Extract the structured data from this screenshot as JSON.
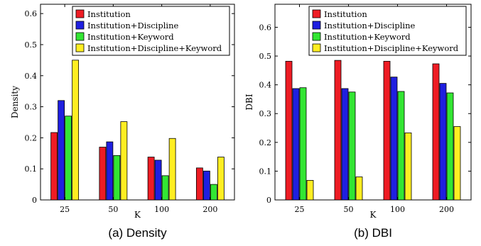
{
  "chart_data": [
    {
      "type": "bar",
      "categories": [
        "25",
        "50",
        "100",
        "200"
      ],
      "series": [
        {
          "name": "Institution",
          "color": "#ee1c24",
          "values": [
            0.217,
            0.17,
            0.138,
            0.103
          ]
        },
        {
          "name": "Institution+Discipline",
          "color": "#1f1fe0",
          "values": [
            0.32,
            0.187,
            0.128,
            0.093
          ]
        },
        {
          "name": "Institution+Keyword",
          "color": "#33e633",
          "values": [
            0.27,
            0.143,
            0.078,
            0.05
          ]
        },
        {
          "name": "Institution+Discipline+Keyword",
          "color": "#ffee22",
          "values": [
            0.45,
            0.252,
            0.198,
            0.138
          ]
        }
      ],
      "xlabel": "K",
      "ylabel": "Density",
      "ylim": [
        0,
        0.63
      ],
      "yticks": [
        "0",
        "0.1",
        "0.2",
        "0.3",
        "0.4",
        "0.5",
        "0.6"
      ],
      "legend": "top-right",
      "grid": false,
      "caption": "(a) Density"
    },
    {
      "type": "bar",
      "categories": [
        "25",
        "50",
        "100",
        "200"
      ],
      "series": [
        {
          "name": "Institution",
          "color": "#ee1c24",
          "values": [
            0.482,
            0.485,
            0.482,
            0.473
          ]
        },
        {
          "name": "Institution+Discipline",
          "color": "#1f1fe0",
          "values": [
            0.387,
            0.387,
            0.427,
            0.405
          ]
        },
        {
          "name": "Institution+Keyword",
          "color": "#33e633",
          "values": [
            0.39,
            0.375,
            0.377,
            0.372
          ]
        },
        {
          "name": "Institution+Discipline+Keyword",
          "color": "#ffee22",
          "values": [
            0.068,
            0.08,
            0.233,
            0.255
          ]
        }
      ],
      "xlabel": "K",
      "ylabel": "DBI",
      "ylim": [
        0,
        0.68
      ],
      "yticks": [
        "0",
        "0.1",
        "0.2",
        "0.3",
        "0.4",
        "0.5",
        "0.6"
      ],
      "legend": "top-right",
      "grid": false,
      "caption": "(b) DBI"
    }
  ]
}
